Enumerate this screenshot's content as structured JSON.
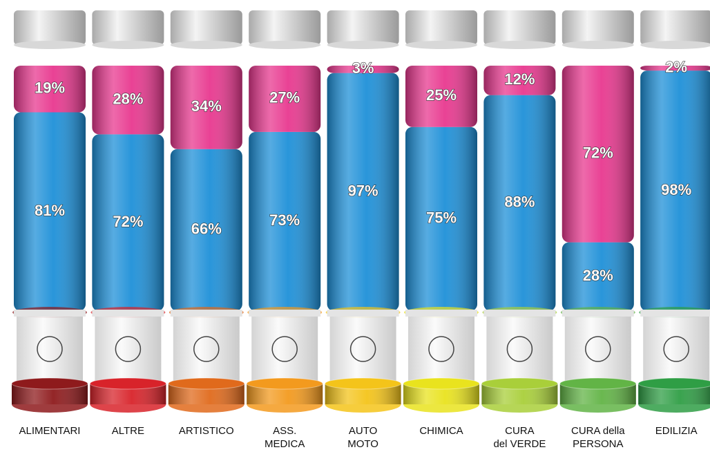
{
  "chart_data": {
    "type": "bar",
    "stacked": true,
    "categories": [
      "ALIMENTARI",
      "ALTRE",
      "ARTISTICO",
      "ASS.\nMEDICA",
      "AUTO\nMOTO",
      "CHIMICA",
      "CURA\ndel VERDE",
      "CURA della\nPERSONA",
      "EDILIZIA"
    ],
    "series": [
      {
        "color": "#1e90d8",
        "values": [
          81,
          72,
          66,
          73,
          97,
          75,
          88,
          28,
          98
        ],
        "value_labels": [
          "81%",
          "72%",
          "66%",
          "73%",
          "97%",
          "75%",
          "88%",
          "28%",
          "98%"
        ]
      },
      {
        "color": "#e8388f",
        "values": [
          19,
          28,
          34,
          27,
          3,
          25,
          12,
          72,
          2
        ],
        "value_labels": [
          "19%",
          "28%",
          "34%",
          "27%",
          "3%",
          "25%",
          "12%",
          "72%",
          "2%"
        ]
      }
    ],
    "ylim": [
      0,
      100
    ],
    "base_colors": [
      "#8e1a1c",
      "#d8232a",
      "#e06a1c",
      "#f39a1e",
      "#f4c41a",
      "#e9e31e",
      "#a9cf3a",
      "#62b446",
      "#2f9e45"
    ]
  }
}
